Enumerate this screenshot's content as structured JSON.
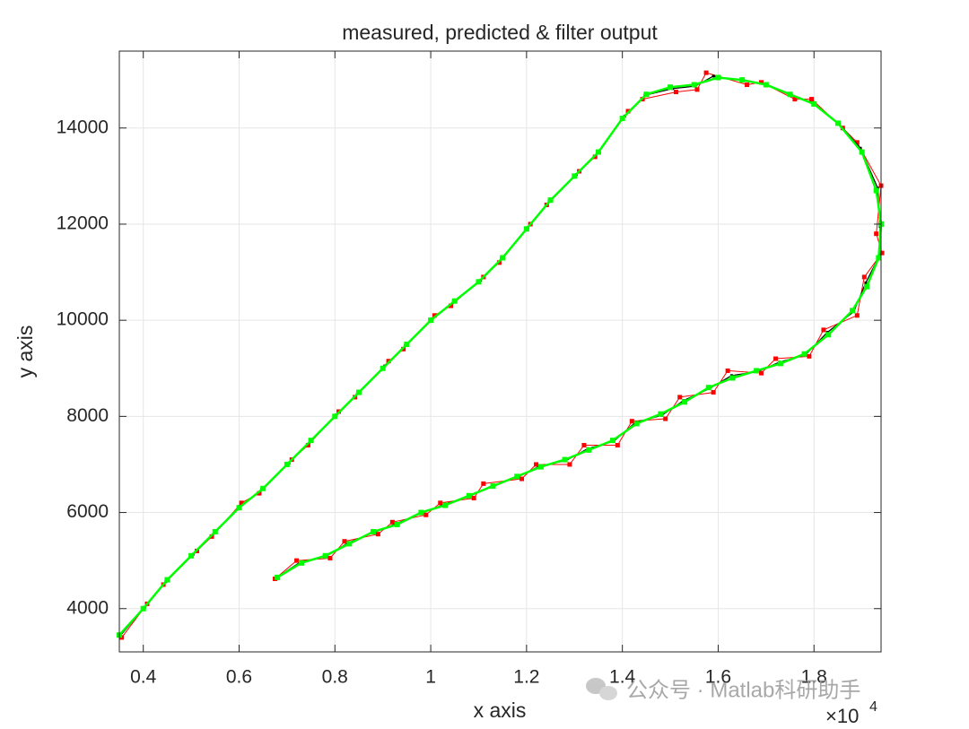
{
  "chart_data": {
    "type": "line",
    "title": "measured, predicted & filter output",
    "x_label": "x axis",
    "y_label": "y axis",
    "x_exponent": {
      "base": "×10",
      "power": "4"
    },
    "watermark": "公众号 · Matlab科研助手",
    "xlim": [
      3500,
      19400
    ],
    "ylim": [
      3100,
      15600
    ],
    "xticks": [
      {
        "value": 4000,
        "label": "0.4"
      },
      {
        "value": 6000,
        "label": "0.6"
      },
      {
        "value": 8000,
        "label": "0.8"
      },
      {
        "value": 10000,
        "label": "1"
      },
      {
        "value": 12000,
        "label": "1.2"
      },
      {
        "value": 14000,
        "label": "1.4"
      },
      {
        "value": 16000,
        "label": "1.6"
      },
      {
        "value": 18000,
        "label": "1.8"
      }
    ],
    "yticks": [
      4000,
      6000,
      8000,
      10000,
      12000,
      14000
    ],
    "grid": true,
    "series": [
      {
        "color": "#ff0000",
        "x": [
          3550,
          4080,
          4420,
          5120,
          5430,
          6050,
          6420,
          7100,
          7440,
          8080,
          8420,
          9120,
          9430,
          10080,
          10420,
          11100,
          11430,
          12080,
          12420,
          13100,
          13430,
          14120,
          14420,
          15120,
          15560,
          15750,
          16600,
          16900,
          17600,
          17950,
          18600,
          18900,
          19400,
          19300,
          19420,
          19050,
          18900,
          18200,
          17900,
          17200,
          16900,
          16200,
          15900,
          15200,
          14900,
          14200,
          13900,
          13200,
          12900,
          12200,
          11900,
          11100,
          10900,
          10200,
          9900,
          9200,
          8900,
          8200,
          7900,
          7200,
          6750
        ],
        "values": [
          3400,
          4100,
          4500,
          5200,
          5500,
          6200,
          6400,
          7100,
          7400,
          8100,
          8400,
          9150,
          9400,
          10100,
          10300,
          10900,
          11200,
          12000,
          12400,
          13100,
          13400,
          14350,
          14600,
          14750,
          14800,
          15150,
          14900,
          14950,
          14600,
          14600,
          14000,
          13700,
          12800,
          11800,
          11400,
          10900,
          10100,
          9800,
          9250,
          9200,
          8900,
          8950,
          8500,
          8400,
          7950,
          7900,
          7400,
          7400,
          7000,
          7000,
          6700,
          6600,
          6300,
          6200,
          5950,
          5800,
          5550,
          5400,
          5050,
          5000,
          4620
        ]
      },
      {
        "color": "#000000",
        "x": [
          3520,
          4030,
          4470,
          5040,
          5480,
          6020,
          6470,
          7040,
          7480,
          8030,
          8470,
          9040,
          9470,
          10030,
          10470,
          11040,
          11470,
          12030,
          12470,
          13040,
          13480,
          14050,
          14470,
          15050,
          15520,
          15900,
          16520,
          16980,
          17530,
          17980,
          18530,
          18970,
          19330,
          19380,
          19370,
          19080,
          18830,
          18280,
          17820,
          17280,
          16820,
          16280,
          15820,
          15280,
          14820,
          14280,
          13820,
          13280,
          12820,
          12280,
          11820,
          11280,
          10820,
          10280,
          9820,
          9280,
          8820,
          8280,
          7820,
          7280,
          6790
        ],
        "values": [
          3440,
          4030,
          4560,
          5130,
          5570,
          6130,
          6480,
          7030,
          7480,
          8030,
          8480,
          9050,
          9480,
          10030,
          10380,
          10830,
          11280,
          11930,
          12480,
          13030,
          13480,
          14250,
          14680,
          14820,
          14870,
          15080,
          14980,
          14920,
          14680,
          14530,
          14080,
          13580,
          12750,
          11950,
          11350,
          10780,
          10180,
          9750,
          9280,
          9130,
          8930,
          8850,
          8580,
          8330,
          8020,
          7880,
          7480,
          7330,
          7080,
          6970,
          6740,
          6560,
          6340,
          6170,
          5990,
          5770,
          5590,
          5370,
          5090,
          4970,
          4650
        ]
      },
      {
        "color": "#00ff00",
        "x": [
          3500,
          4000,
          4500,
          5000,
          5500,
          6000,
          6500,
          7000,
          7500,
          8000,
          8500,
          9000,
          9500,
          10000,
          10500,
          11000,
          11500,
          12000,
          12500,
          13000,
          13500,
          14000,
          14500,
          15000,
          15500,
          16000,
          16500,
          17000,
          17500,
          18000,
          18500,
          19000,
          19300,
          19400,
          19350,
          19100,
          18800,
          18300,
          17800,
          17300,
          16800,
          16300,
          15800,
          15300,
          14800,
          14300,
          13800,
          13300,
          12800,
          12300,
          11800,
          11300,
          10800,
          10300,
          9800,
          9300,
          8800,
          8300,
          7800,
          7300,
          6800
        ],
        "values": [
          3450,
          4000,
          4600,
          5100,
          5600,
          6100,
          6500,
          7000,
          7500,
          8000,
          8500,
          9000,
          9500,
          10000,
          10400,
          10800,
          11300,
          11900,
          12500,
          13000,
          13500,
          14200,
          14700,
          14850,
          14900,
          15050,
          15000,
          14900,
          14700,
          14500,
          14100,
          13500,
          12700,
          12000,
          11300,
          10700,
          10200,
          9700,
          9300,
          9100,
          8950,
          8800,
          8600,
          8300,
          8050,
          7850,
          7500,
          7300,
          7100,
          6950,
          6750,
          6550,
          6350,
          6150,
          6000,
          5750,
          5600,
          5350,
          5100,
          4950,
          4650
        ]
      }
    ]
  }
}
